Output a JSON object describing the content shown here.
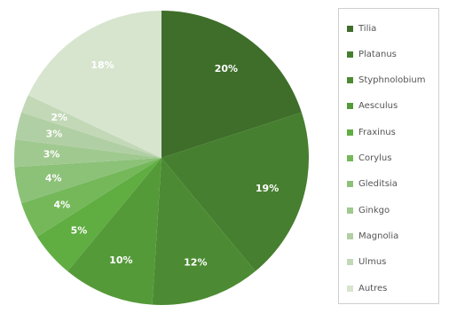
{
  "chart_data": {
    "type": "pie",
    "title": "",
    "start_angle": "12 o'clock",
    "direction": "clockwise",
    "label_color": "#ffffff",
    "slices": [
      {
        "label": "Tilia",
        "value": 20,
        "value_label": "20%",
        "color": "#3e6e2a"
      },
      {
        "label": "Platanus",
        "value": 19,
        "value_label": "19%",
        "color": "#467f2f"
      },
      {
        "label": "Styphnolobium",
        "value": 12,
        "value_label": "12%",
        "color": "#4c8b33"
      },
      {
        "label": "Aesculus",
        "value": 10,
        "value_label": "10%",
        "color": "#559a39"
      },
      {
        "label": "Fraxinus",
        "value": 5,
        "value_label": "5%",
        "color": "#60ad42"
      },
      {
        "label": "Corylus",
        "value": 4,
        "value_label": "4%",
        "color": "#74b85a"
      },
      {
        "label": "Gleditsia",
        "value": 4,
        "value_label": "4%",
        "color": "#8cc178"
      },
      {
        "label": "Ginkgo",
        "value": 3,
        "value_label": "3%",
        "color": "#a0c990"
      },
      {
        "label": "Magnolia",
        "value": 3,
        "value_label": "3%",
        "color": "#b1cfa4"
      },
      {
        "label": "Ulmus",
        "value": 2,
        "value_label": "2%",
        "color": "#c2d8b7"
      },
      {
        "label": "Autres",
        "value": 18,
        "value_label": "18%",
        "color": "#d7e5cf"
      }
    ],
    "legend": {
      "position": "right",
      "border_color": "#cfcfcf"
    }
  }
}
